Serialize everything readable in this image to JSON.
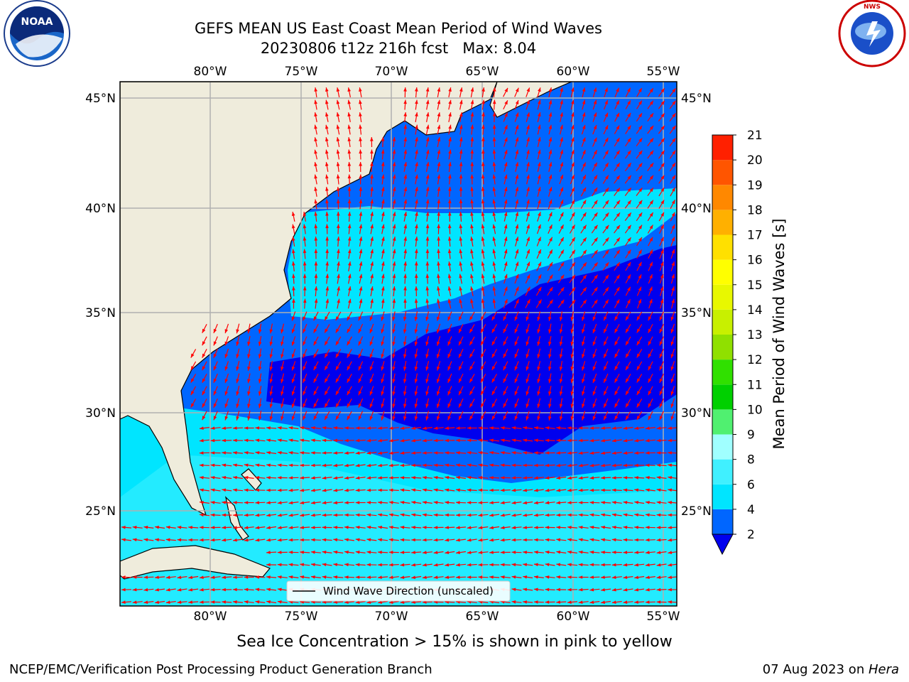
{
  "title": {
    "line1": "GEFS MEAN US East Coast Mean Period of Wind Waves",
    "line2": "20230806 t12z 216h fcst   Max: 8.04"
  },
  "logos": {
    "left": "NOAA",
    "right": "NATIONAL WEATHER SERVICE"
  },
  "map": {
    "lon_labels": [
      "80°W",
      "75°W",
      "70°W",
      "65°W",
      "60°W",
      "55°W"
    ],
    "lat_labels": [
      "45°N",
      "40°N",
      "35°N",
      "30°N",
      "25°N"
    ],
    "legend_label": "Wind Wave Direction (unscaled)",
    "land_color": "#efecdc",
    "arrow_color": "#ff0000",
    "arrow_direction_north_region": "north",
    "arrow_direction_south_region": "west"
  },
  "colorbar": {
    "label": "Mean Period of Wind Waves [s]",
    "ticks": [
      "2",
      "4",
      "6",
      "8",
      "9",
      "10",
      "11",
      "12",
      "13",
      "14",
      "15",
      "16",
      "17",
      "18",
      "19",
      "20",
      "21"
    ],
    "colors": [
      "#0066ff",
      "#00e5ff",
      "#40f0ff",
      "#a0ffff",
      "#50f070",
      "#00d000",
      "#30e000",
      "#90e000",
      "#c8f000",
      "#e8f800",
      "#ffff00",
      "#ffe000",
      "#ffb000",
      "#ff8800",
      "#ff5500",
      "#ff2000"
    ],
    "under_color": "#0000ee"
  },
  "note": "Sea Ice Concentration > 15% is shown in pink to yellow",
  "footer": {
    "left": "NCEP/EMC/Verification Post Processing Product Generation Branch",
    "right_prefix": "07 Aug 2023 on ",
    "right_host": "Hera"
  }
}
